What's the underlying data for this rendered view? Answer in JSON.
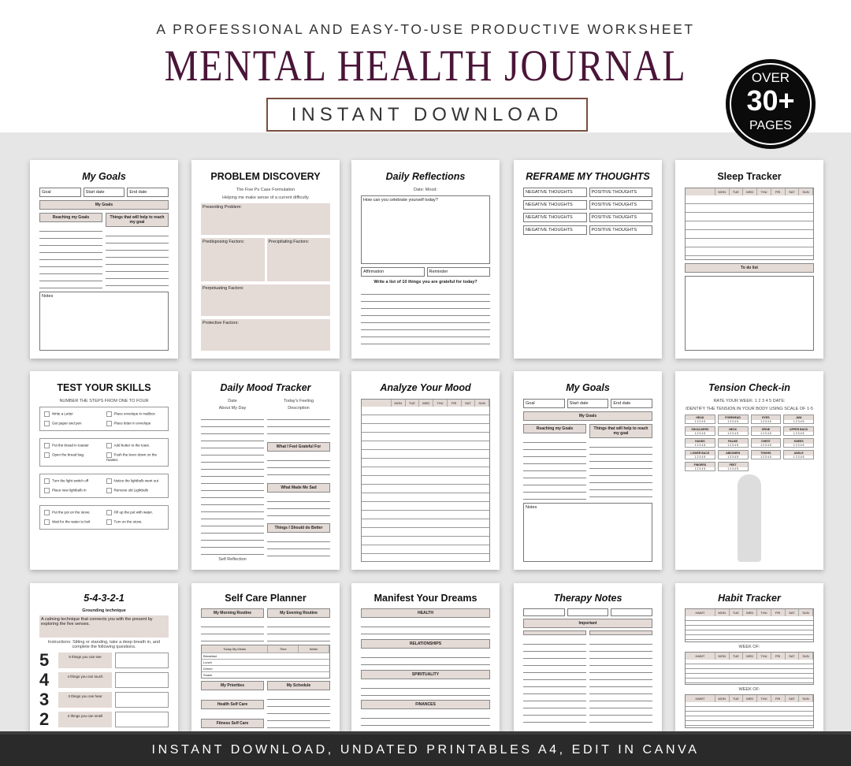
{
  "header": {
    "kicker": "A PROFESSIONAL AND EASY-TO-USE PRODUCTIVE WORKSHEET",
    "title": "MENTAL HEALTH JOURNAL",
    "button": "INSTANT DOWNLOAD",
    "badge": {
      "over": "OVER",
      "count": "30+",
      "pages": "PAGES"
    }
  },
  "footer": "INSTANT DOWNLOAD, UNDATED PRINTABLES A4, EDIT IN CANVA",
  "colors": {
    "title": "#4a1538",
    "accent_tan": "#e4dad6",
    "footer": "#2a2a2a",
    "badge": "#0b0b0b"
  },
  "pages": [
    {
      "title": "My Goals",
      "italic": true,
      "blocks": [
        {
          "t": "row",
          "items": [
            "Goal",
            "Start date",
            "End date"
          ]
        },
        {
          "t": "bar",
          "label": "My Goals"
        },
        {
          "t": "cols",
          "cols": [
            [
              {
                "t": "bar",
                "label": "Reaching my Goals"
              },
              {
                "t": "lines"
              }
            ],
            [
              {
                "t": "bar",
                "label": "Things that will help to reach my goal"
              },
              {
                "t": "lines"
              }
            ]
          ]
        },
        {
          "t": "box",
          "label": "Notes"
        }
      ]
    },
    {
      "title": "PROBLEM DISCOVERY",
      "italic": false,
      "blocks": [
        {
          "t": "sub",
          "label": "The Five Ps Case Formulation"
        },
        {
          "t": "sub",
          "label": "Helping me make sense of a current difficulty"
        },
        {
          "t": "tbox",
          "label": "Presenting Problem:"
        },
        {
          "t": "trow",
          "items": [
            "Predisposing Factors:",
            "Precipitating Factors:"
          ]
        },
        {
          "t": "tbox",
          "label": "Perpetuating Factors:"
        },
        {
          "t": "tbox",
          "label": "Protective Factors:"
        }
      ]
    },
    {
      "title": "Daily Reflections",
      "italic": true,
      "blocks": [
        {
          "t": "sub",
          "label": "Date:                    Mood:"
        },
        {
          "t": "box",
          "label": "How can you celebrate yourself today?"
        },
        {
          "t": "row",
          "items": [
            "Affirmation",
            "Reminder"
          ]
        },
        {
          "t": "text",
          "label": "Write a list of 10 things you are grateful for today?"
        },
        {
          "t": "lines"
        }
      ]
    },
    {
      "title": "REFRAME MY THOUGHTS",
      "italic": true,
      "blocks": [
        {
          "t": "row",
          "items": [
            "NEGATIVE THOUGHTS",
            "POSITIVE THOUGHTS"
          ]
        },
        {
          "t": "row",
          "items": [
            "NEGATIVE THOUGHTS",
            "POSITIVE THOUGHTS"
          ]
        },
        {
          "t": "row",
          "items": [
            "NEGATIVE THOUGHTS",
            "POSITIVE THOUGHTS"
          ]
        },
        {
          "t": "row",
          "items": [
            "NEGATIVE THOUGHTS",
            "POSITIVE THOUGHTS"
          ]
        }
      ]
    },
    {
      "title": "Sleep Tracker",
      "italic": false,
      "blocks": [
        {
          "t": "grid",
          "cols": [
            "",
            "MON",
            "TUE",
            "WED",
            "THU",
            "FRI",
            "SAT",
            "SUN"
          ]
        },
        {
          "t": "bar",
          "label": "To do list"
        },
        {
          "t": "box",
          "label": ""
        }
      ]
    },
    {
      "title": "TEST YOUR SKILLS",
      "italic": false,
      "blocks": [
        {
          "t": "sub",
          "label": "NUMBER THE STEPS FROM ONE TO FOUR"
        },
        {
          "t": "checks",
          "items": [
            "Write a Letter",
            "Place envelope in mailbox",
            "Get paper and pen",
            "Place letter in envelope"
          ]
        },
        {
          "t": "checks",
          "items": [
            "Put the bread in toaster",
            "Add butter to the toast.",
            "Open the bread bag.",
            "Push the lever down on the Toaster."
          ]
        },
        {
          "t": "checks",
          "items": [
            "Turn the light switch off",
            "Notice the lightbulb went out",
            "Place new lightbulb in",
            "Remove old Lightbulb"
          ]
        },
        {
          "t": "checks",
          "items": [
            "Put the pot on the stove.",
            "Fill up the pot with water.",
            "Wait for the water to boil",
            "Turn on the stove."
          ]
        }
      ]
    },
    {
      "title": "Daily Mood Tracker",
      "italic": true,
      "blocks": [
        {
          "t": "cols",
          "cols": [
            [
              {
                "t": "sub",
                "label": "Date"
              },
              {
                "t": "sub",
                "label": "About My Day"
              },
              {
                "t": "lines"
              },
              {
                "t": "sub",
                "label": "Self Reflection"
              }
            ],
            [
              {
                "t": "sub",
                "label": "Today's Feeling"
              },
              {
                "t": "sub",
                "label": "Description"
              },
              {
                "t": "lines"
              },
              {
                "t": "bar",
                "label": "What I Feel Grateful For"
              },
              {
                "t": "lines"
              },
              {
                "t": "bar",
                "label": "What Made Me Sad"
              },
              {
                "t": "lines"
              },
              {
                "t": "bar",
                "label": "Things I Should do Better"
              },
              {
                "t": "lines"
              }
            ]
          ]
        }
      ]
    },
    {
      "title": "Analyze Your Mood",
      "italic": true,
      "blocks": [
        {
          "t": "grid",
          "cols": [
            "",
            "MON",
            "TUE",
            "WED",
            "THU",
            "FRI",
            "SAT",
            "SUN"
          ]
        }
      ]
    },
    {
      "title": "My Goals",
      "italic": true,
      "blocks": [
        {
          "t": "row",
          "items": [
            "Goal",
            "Start date",
            "End date"
          ]
        },
        {
          "t": "bar",
          "label": "My Goals"
        },
        {
          "t": "cols",
          "cols": [
            [
              {
                "t": "bar",
                "label": "Reaching my Goals"
              },
              {
                "t": "lines"
              }
            ],
            [
              {
                "t": "bar",
                "label": "Things that will help to reach my goal"
              },
              {
                "t": "lines"
              }
            ]
          ]
        },
        {
          "t": "box",
          "label": "Notes"
        }
      ]
    },
    {
      "title": "Tension Check-in",
      "italic": true,
      "blocks": [
        {
          "t": "sub",
          "label": "RATE YOUR WEEK:   1   2   3   4   5     DATE:"
        },
        {
          "t": "sub",
          "label": "IDENTIFY THE TENSION IN YOUR BODY USING SCALE OF 1-5"
        },
        {
          "t": "scale",
          "items": [
            "HEAD",
            "FOREHEAD",
            "EYES",
            "JAW",
            "SHOULDERS",
            "NECK",
            "SPINE",
            "UPPER BACK",
            "HANDS",
            "PALMS",
            "CHEST",
            "KNEES",
            "LOWER BACK",
            "ABDOMEN",
            "THIGHS",
            "ANKLE",
            "FINGERS",
            "FEET"
          ]
        },
        {
          "t": "figure"
        }
      ]
    },
    {
      "title": "5-4-3-2-1",
      "italic": true,
      "blocks": [
        {
          "t": "text",
          "label": "Grounding technique"
        },
        {
          "t": "tbox",
          "label": "A calming technique that connects you with the present by exploring the five senses."
        },
        {
          "t": "sub",
          "label": "Instructions: Sitting or standing, take a deep breath in, and complete the following questions."
        },
        {
          "t": "senses",
          "items": [
            [
              "5",
              "5 things you can see"
            ],
            [
              "4",
              "4 things you can touch"
            ],
            [
              "3",
              "3 things you can hear"
            ],
            [
              "2",
              "2 things you can smell"
            ]
          ]
        }
      ]
    },
    {
      "title": "Self Care Planner",
      "italic": false,
      "blocks": [
        {
          "t": "cols",
          "cols": [
            [
              {
                "t": "bar",
                "label": "My Morning Routine"
              },
              {
                "t": "lines"
              }
            ],
            [
              {
                "t": "bar",
                "label": "My Evening Routine"
              },
              {
                "t": "lines"
              }
            ]
          ]
        },
        {
          "t": "grid",
          "cols": [
            "Today My Meals",
            "Time",
            "Water"
          ],
          "rows": [
            "Breakfast",
            "Lunch",
            "Dinner",
            "Snack"
          ]
        },
        {
          "t": "cols",
          "cols": [
            [
              {
                "t": "bar",
                "label": "My Priorities"
              },
              {
                "t": "lines"
              },
              {
                "t": "bar",
                "label": "Health Self Care"
              },
              {
                "t": "lines"
              },
              {
                "t": "bar",
                "label": "Fitness Self Care"
              }
            ],
            [
              {
                "t": "bar",
                "label": "My Schedule"
              },
              {
                "t": "lines"
              }
            ]
          ]
        }
      ]
    },
    {
      "title": "Manifest Your Dreams",
      "italic": false,
      "blocks": [
        {
          "t": "bar",
          "label": "HEALTH"
        },
        {
          "t": "lines"
        },
        {
          "t": "bar",
          "label": "RELATIONSHIPS"
        },
        {
          "t": "lines"
        },
        {
          "t": "bar",
          "label": "SPIRITUALITY"
        },
        {
          "t": "lines"
        },
        {
          "t": "bar",
          "label": "FINANCES"
        },
        {
          "t": "lines"
        }
      ]
    },
    {
      "title": "Therapy Notes",
      "italic": true,
      "blocks": [
        {
          "t": "row",
          "items": [
            "",
            "",
            ""
          ]
        },
        {
          "t": "bar",
          "label": "Important"
        },
        {
          "t": "cols",
          "cols": [
            [
              {
                "t": "bar",
                "label": ""
              },
              {
                "t": "lines"
              }
            ],
            [
              {
                "t": "bar",
                "label": ""
              },
              {
                "t": "lines"
              }
            ]
          ]
        }
      ]
    },
    {
      "title": "Habit Tracker",
      "italic": true,
      "blocks": [
        {
          "t": "grid",
          "cols": [
            "HABIT",
            "MON",
            "TUE",
            "WED",
            "THU",
            "FRI",
            "SAT",
            "SUN"
          ]
        },
        {
          "t": "sub",
          "label": "WEEK OF:"
        },
        {
          "t": "grid",
          "cols": [
            "HABIT",
            "MON",
            "TUE",
            "WED",
            "THU",
            "FRI",
            "SAT",
            "SUN"
          ]
        },
        {
          "t": "sub",
          "label": "WEEK OF:"
        },
        {
          "t": "grid",
          "cols": [
            "HABIT",
            "MON",
            "TUE",
            "WED",
            "THU",
            "FRI",
            "SAT",
            "SUN"
          ]
        }
      ]
    }
  ]
}
